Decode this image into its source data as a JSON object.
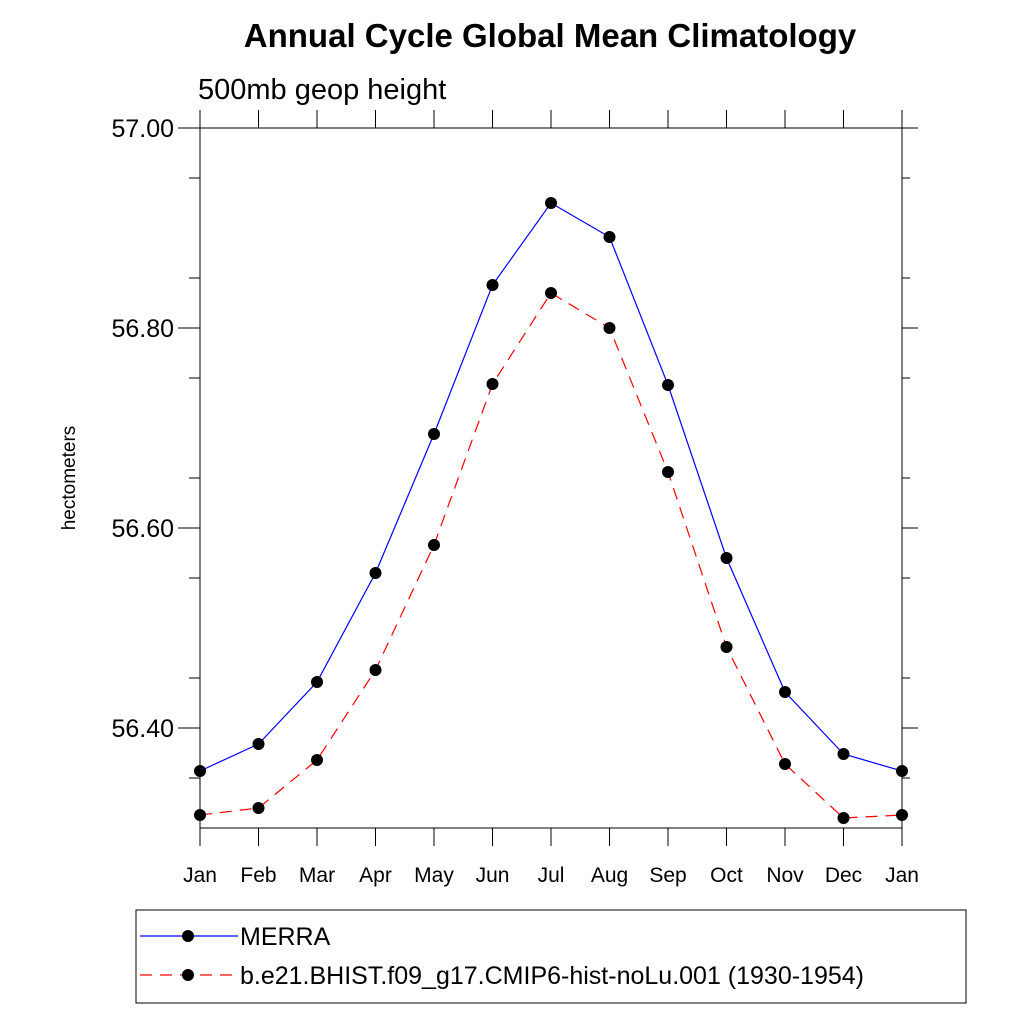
{
  "chart_data": {
    "type": "line",
    "title": "Annual Cycle Global Mean Climatology",
    "subtitle": "500mb geop height",
    "ylabel": "hectometers",
    "ylim": [
      56.3,
      57.0
    ],
    "yticks": [
      "57.00",
      "56.80",
      "56.60",
      "56.40"
    ],
    "yticks_values": [
      57.0,
      56.8,
      56.6,
      56.4
    ],
    "categories": [
      "Jan",
      "Feb",
      "Mar",
      "Apr",
      "May",
      "Jun",
      "Jul",
      "Aug",
      "Sep",
      "Oct",
      "Nov",
      "Dec",
      "Jan"
    ],
    "grid": false,
    "legend_position": "bottom",
    "series": [
      {
        "name": "MERRA",
        "color": "#0000ff",
        "dash": false,
        "values": [
          56.357,
          56.384,
          56.446,
          56.555,
          56.694,
          56.843,
          56.925,
          56.891,
          56.743,
          56.57,
          56.436,
          56.374,
          56.357
        ]
      },
      {
        "name": "b.e21.BHIST.f09_g17.CMIP6-hist-noLu.001 (1930-1954)",
        "color": "#ff0000",
        "dash": true,
        "values": [
          56.313,
          56.32,
          56.368,
          56.458,
          56.583,
          56.744,
          56.835,
          56.8,
          56.656,
          56.481,
          56.364,
          56.31,
          56.313
        ]
      }
    ]
  }
}
